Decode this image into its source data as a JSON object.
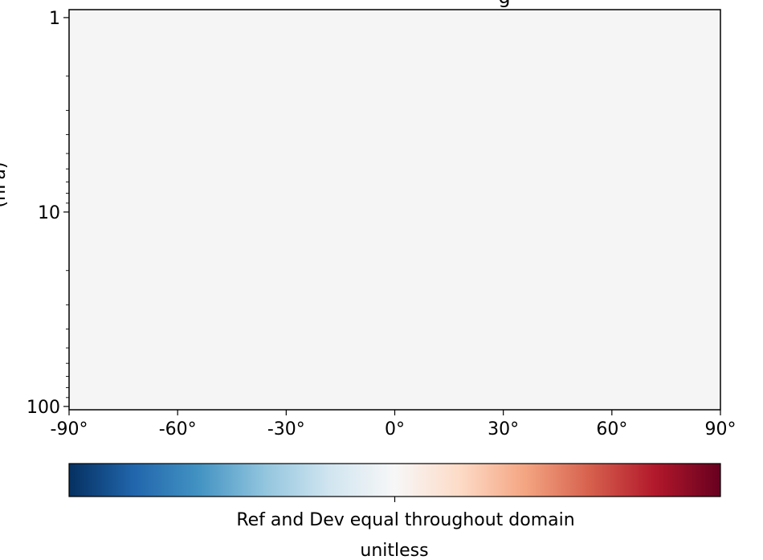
{
  "chart_data": {
    "type": "heatmap",
    "title": "",
    "title_visible_fragment": "g",
    "ylabel_visible_fragment": "(hPa)",
    "xlabel": "",
    "x_ticks": [
      {
        "value": -90,
        "label": "-90°"
      },
      {
        "value": -60,
        "label": "-60°"
      },
      {
        "value": -30,
        "label": "-30°"
      },
      {
        "value": 0,
        "label": "0°"
      },
      {
        "value": 30,
        "label": "30°"
      },
      {
        "value": 60,
        "label": "60°"
      },
      {
        "value": 90,
        "label": "90°"
      }
    ],
    "xlim": [
      -90,
      90
    ],
    "y_scale": "log",
    "y_inverted": true,
    "y_ticks": [
      {
        "value": 1,
        "label": "1"
      },
      {
        "value": 10,
        "label": "10"
      },
      {
        "value": 100,
        "label": "100"
      }
    ],
    "ylim": [
      0.91,
      104
    ],
    "field_color": "#f5f5f5",
    "field_state": "uniform",
    "colorbar": {
      "colormap": "RdBu_r",
      "colors": [
        "#053061",
        "#2166ac",
        "#4393c3",
        "#92c5de",
        "#d1e5f0",
        "#f7f7f7",
        "#fddbc7",
        "#f4a582",
        "#d6604d",
        "#b2182b",
        "#67001f"
      ],
      "center_tick_label": "",
      "label": "Ref and Dev equal throughout domain",
      "units": "unitless"
    }
  }
}
